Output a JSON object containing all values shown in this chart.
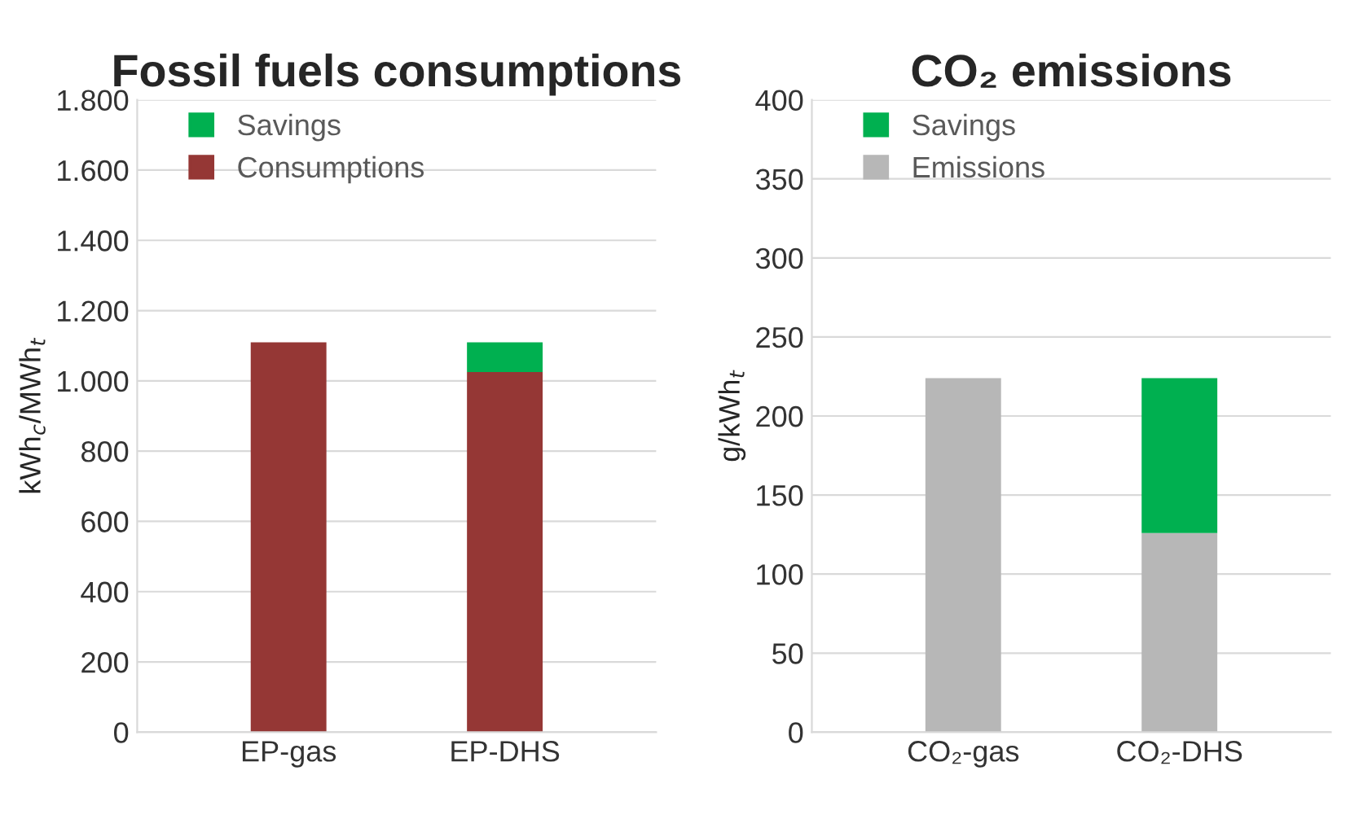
{
  "chart_data": [
    {
      "type": "bar",
      "title": "Fossil fuels consumptions",
      "ylabel": "kWh$_{c}$/MWh$_{t}$",
      "categories": [
        "EP-gas",
        "EP-DHS"
      ],
      "stacked": true,
      "series": [
        {
          "name": "Consumptions",
          "color": "#953735",
          "values": [
            1110,
            1025
          ]
        },
        {
          "name": "Savings",
          "color": "#00b050",
          "values": [
            null,
            85
          ]
        }
      ],
      "ylim": [
        0,
        1800
      ],
      "yticks": [
        0,
        200,
        400,
        600,
        800,
        {
          "value": 1000,
          "label": "1.000"
        },
        {
          "value": 1200,
          "label": "1.200"
        },
        {
          "value": 1400,
          "label": "1.400"
        },
        {
          "value": 1600,
          "label": "1.600"
        },
        {
          "value": 1800,
          "label": "1.800"
        }
      ],
      "grid": "y",
      "legend": "top left"
    },
    {
      "type": "bar",
      "title": "CO₂ emissions",
      "ylabel": "g/kWh$_{t}$",
      "categories": [
        "CO₂-gas",
        "CO₂-DHS"
      ],
      "stacked": true,
      "series": [
        {
          "name": "Emissions",
          "color": "#b7b7b7",
          "values": [
            224,
            126
          ]
        },
        {
          "name": "Savings",
          "color": "#00b050",
          "values": [
            null,
            98
          ]
        }
      ],
      "ylim": [
        0,
        400
      ],
      "yticks": [
        0,
        50,
        100,
        150,
        200,
        250,
        300,
        350,
        400
      ],
      "grid": "y",
      "legend": "top left"
    }
  ]
}
